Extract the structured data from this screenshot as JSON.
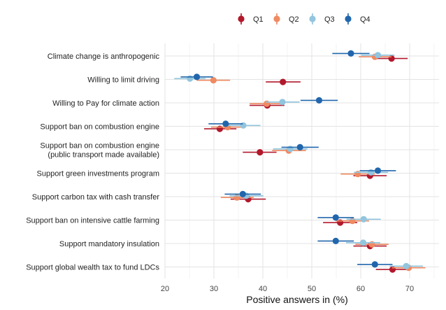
{
  "chart_data": {
    "type": "scatter",
    "subtype": "dot-plot-with-error-bars",
    "title": "",
    "xlabel": "Positive answers in (%)",
    "ylabel": "",
    "xlim": [
      20,
      76
    ],
    "xticks": [
      20,
      30,
      40,
      50,
      60,
      70
    ],
    "grid": true,
    "legend_position": "top",
    "categories": [
      "Climate change is anthropogenic",
      "Willing to limit driving",
      "Willing to Pay for climate action",
      "Support ban on combustion engine",
      "Support ban on combustion engine\n(public transport made available)",
      "Support green investments program",
      "Support carbon tax with cash transfer",
      "Support ban on intensive cattle farming",
      "Support mandatory insulation",
      "Support global wealth tax to fund LDCs"
    ],
    "series": [
      {
        "name": "Q1",
        "color": "#b2182b",
        "values": [
          66.3,
          44.1,
          40.9,
          31.2,
          39.4,
          61.9,
          37.0,
          55.8,
          61.9,
          66.5
        ],
        "ci_low": [
          63.1,
          40.6,
          37.3,
          28.0,
          35.9,
          58.5,
          33.4,
          52.3,
          58.5,
          63.1
        ],
        "ci_high": [
          69.6,
          47.7,
          44.4,
          34.6,
          42.8,
          65.3,
          40.6,
          59.3,
          65.3,
          69.9
        ]
      },
      {
        "name": "Q2",
        "color": "#ef8a62",
        "values": [
          62.9,
          29.9,
          40.8,
          32.8,
          45.3,
          59.4,
          34.7,
          58.3,
          62.3,
          69.8
        ],
        "ci_low": [
          59.6,
          26.5,
          37.3,
          29.4,
          41.9,
          55.9,
          31.4,
          54.9,
          58.9,
          66.4
        ],
        "ci_high": [
          66.3,
          33.3,
          44.3,
          36.3,
          48.8,
          62.9,
          38.1,
          61.7,
          65.7,
          73.2
        ]
      },
      {
        "name": "Q3",
        "color": "#92c5de",
        "values": [
          63.5,
          25.1,
          44.0,
          36.0,
          45.6,
          62.1,
          36.6,
          60.6,
          60.5,
          69.3
        ],
        "ci_low": [
          60.1,
          21.9,
          40.6,
          32.5,
          42.1,
          58.6,
          33.2,
          57.1,
          57.0,
          65.9
        ],
        "ci_high": [
          66.9,
          28.3,
          47.5,
          39.5,
          49.1,
          65.6,
          40.1,
          64.1,
          64.0,
          72.7
        ]
      },
      {
        "name": "Q4",
        "color": "#2166ac",
        "values": [
          58.0,
          26.5,
          51.5,
          32.4,
          47.6,
          63.5,
          35.9,
          54.9,
          54.9,
          62.9
        ],
        "ci_low": [
          54.2,
          23.2,
          47.7,
          28.9,
          43.8,
          59.8,
          32.2,
          51.2,
          51.2,
          59.3
        ],
        "ci_high": [
          61.8,
          29.8,
          55.3,
          35.9,
          51.4,
          67.2,
          39.6,
          58.6,
          58.6,
          66.5
        ]
      }
    ]
  }
}
